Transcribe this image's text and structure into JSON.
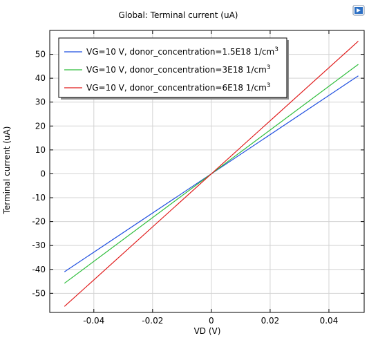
{
  "chart_data": {
    "type": "line",
    "title": "Global: Terminal current (uA)",
    "xlabel": "VD (V)",
    "ylabel": "Terminal current (uA)",
    "xlim": [
      -0.055,
      0.052
    ],
    "ylim": [
      -58,
      60
    ],
    "xticks": [
      -0.04,
      -0.02,
      0,
      0.02,
      0.04
    ],
    "xtick_labels": [
      "-0.04",
      "-0.02",
      "0",
      "0.02",
      "0.04"
    ],
    "yticks": [
      -50,
      -40,
      -30,
      -20,
      -10,
      0,
      10,
      20,
      30,
      40,
      50
    ],
    "ytick_labels": [
      "-50",
      "-40",
      "-30",
      "-20",
      "-10",
      "0",
      "10",
      "20",
      "30",
      "40",
      "50"
    ],
    "grid": true,
    "legend_position": "top-left",
    "series": [
      {
        "name": "VG=10 V, donor_concentration=1.5E18 1/cm",
        "sup": "3",
        "color": "#1f4fe0",
        "x": [
          -0.05,
          0.05
        ],
        "y": [
          -41,
          41
        ]
      },
      {
        "name": "VG=10 V, donor_concentration=3E18 1/cm",
        "sup": "3",
        "color": "#2ebd3b",
        "x": [
          -0.05,
          0.05
        ],
        "y": [
          -45.8,
          45.8
        ]
      },
      {
        "name": "VG=10 V, donor_concentration=6E18 1/cm",
        "sup": "3",
        "color": "#e01a1a",
        "x": [
          -0.05,
          0.05
        ],
        "y": [
          -55.5,
          55.5
        ]
      }
    ]
  }
}
